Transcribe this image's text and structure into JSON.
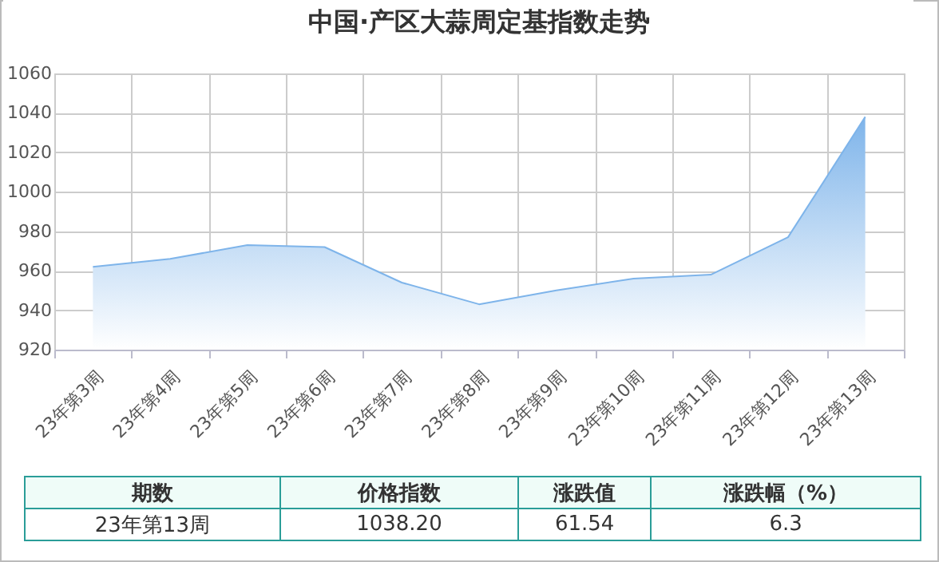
{
  "chart_data": {
    "type": "area",
    "title": "中国·产区大蒜周定基指数走势",
    "categories": [
      "23年第3周",
      "23年第4周",
      "23年第5周",
      "23年第6周",
      "23年第7周",
      "23年第8周",
      "23年第9周",
      "23年第10周",
      "23年第11周",
      "23年第12周",
      "23年第13周"
    ],
    "series": [
      {
        "color": "#7eb4ea",
        "values": [
          962,
          966,
          973,
          972,
          954,
          943,
          950,
          956,
          958,
          977,
          1038
        ]
      }
    ],
    "ylim": [
      920,
      1060
    ],
    "yticks": [
      920,
      940,
      960,
      980,
      1000,
      1020,
      1040,
      1060
    ],
    "grid": true,
    "annotations": [
      "期数",
      "价格指数",
      "涨跌值",
      "涨跌幅（%）",
      "23年第13周",
      "1038.20",
      "61.54",
      "6.3"
    ]
  }
}
